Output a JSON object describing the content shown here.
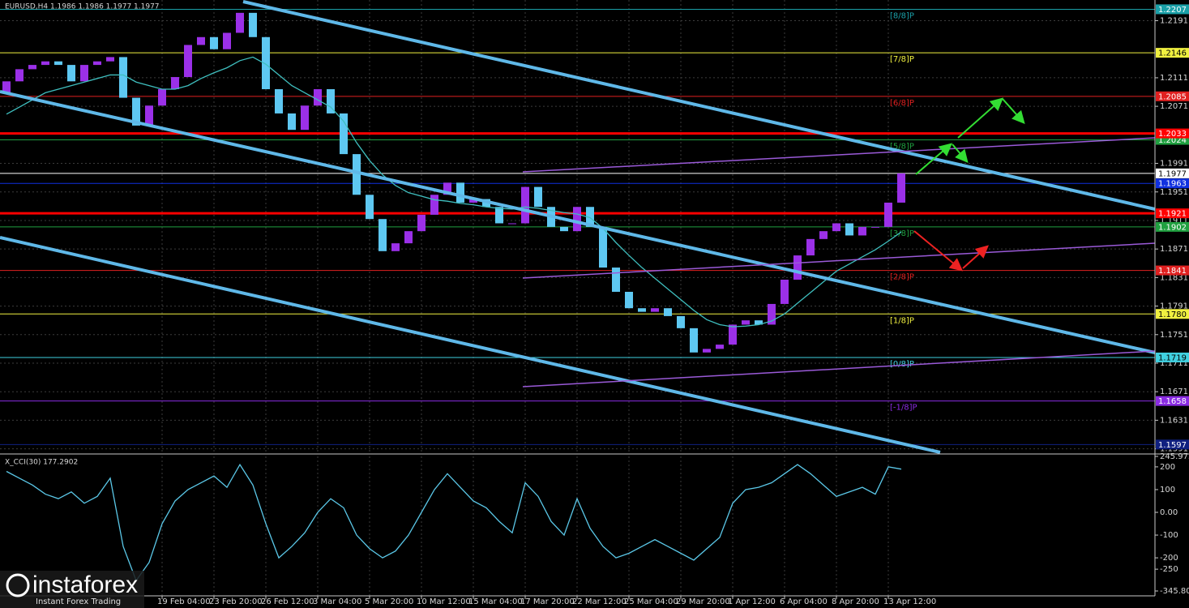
{
  "header": "EURUSD,H4  1.1986 1.1986 1.1977 1.1977",
  "chart_data": [
    {
      "type": "candlestick",
      "categories": [
        null,
        null,
        null,
        null,
        null,
        null,
        null,
        null,
        null,
        null,
        null,
        null,
        "19 Feb 04:00",
        null,
        null,
        null,
        "23 Feb 20:00",
        null,
        null,
        null,
        "26 Feb 12:00",
        null,
        null,
        null,
        "3 Mar 04:00",
        null,
        null,
        null,
        "5 Mar 20:00",
        null,
        null,
        null,
        "10 Mar 12:00",
        null,
        null,
        null,
        "15 Mar 04:00",
        null,
        null,
        null,
        "17 Mar 20:00",
        null,
        null,
        null,
        "22 Mar 12:00",
        null,
        null,
        null,
        "25 Mar 04:00",
        null,
        null,
        null,
        "29 Mar 20:00",
        null,
        null,
        null,
        "1 Apr 12:00",
        null,
        null,
        null,
        "6 Apr 04:00",
        null,
        null,
        null,
        "8 Apr 20:00",
        null,
        null,
        null,
        "13 Apr 12:00",
        null
      ],
      "open": [
        1.209,
        1.2106,
        1.2123,
        1.2129,
        1.2134,
        1.2129,
        1.2106,
        1.2129,
        1.2134,
        1.214,
        1.2083,
        1.2044,
        1.2072,
        1.2095,
        1.2112,
        1.2157,
        1.2168,
        1.2151,
        1.2174,
        1.2202,
        1.2168,
        1.2095,
        1.2061,
        1.2038,
        1.2072,
        1.2095,
        1.2061,
        1.2004,
        1.1947,
        1.1913,
        1.1868,
        1.1879,
        1.1896,
        1.1919,
        1.1947,
        1.1964,
        1.1936,
        1.1941,
        1.193,
        1.1907,
        1.1907,
        1.1958,
        1.193,
        1.1902,
        1.1896,
        1.193,
        1.1902,
        1.1845,
        1.1811,
        1.1788,
        1.1783,
        1.1788,
        1.1777,
        1.176,
        1.1726,
        1.1731,
        1.1737,
        1.1765,
        1.1771,
        1.1765,
        1.1794,
        1.1828,
        1.1862,
        1.1885,
        1.1896,
        1.1907,
        1.189,
        1.1902,
        1.1902,
        1.1936
      ],
      "close": [
        1.2106,
        1.2123,
        1.2129,
        1.2134,
        1.2129,
        1.2106,
        1.2129,
        1.2134,
        1.214,
        1.2083,
        1.2044,
        1.2072,
        1.2095,
        1.2112,
        1.2157,
        1.2168,
        1.2151,
        1.2174,
        1.2202,
        1.2168,
        1.2095,
        1.2061,
        1.2038,
        1.2072,
        1.2095,
        1.2061,
        1.2004,
        1.1947,
        1.1913,
        1.1868,
        1.1879,
        1.1896,
        1.1919,
        1.1947,
        1.1964,
        1.1936,
        1.1941,
        1.193,
        1.1907,
        1.1907,
        1.1958,
        1.193,
        1.1902,
        1.1896,
        1.193,
        1.1902,
        1.1845,
        1.1811,
        1.1788,
        1.1783,
        1.1788,
        1.1777,
        1.176,
        1.1726,
        1.1731,
        1.1737,
        1.1765,
        1.1771,
        1.1765,
        1.1794,
        1.1828,
        1.1862,
        1.1885,
        1.1896,
        1.1907,
        1.189,
        1.1902,
        1.1902,
        1.1936,
        1.1977
      ],
      "up_color": "#9b30e8",
      "down_color": "#5ec8f2",
      "ma": {
        "color": "#3fbfbf",
        "values": [
          1.206,
          1.207,
          1.208,
          1.209,
          1.2095,
          1.21,
          1.2105,
          1.211,
          1.2115,
          1.2115,
          1.2105,
          1.21,
          1.2095,
          1.2095,
          1.21,
          1.211,
          1.2118,
          1.2125,
          1.2135,
          1.214,
          1.213,
          1.2115,
          1.21,
          1.209,
          1.208,
          1.207,
          1.205,
          1.202,
          1.1995,
          1.1975,
          1.196,
          1.195,
          1.1945,
          1.194,
          1.1938,
          1.1935,
          1.1933,
          1.193,
          1.1928,
          1.1927,
          1.193,
          1.1928,
          1.1925,
          1.1922,
          1.192,
          1.1915,
          1.19,
          1.188,
          1.1862,
          1.1845,
          1.183,
          1.1815,
          1.18,
          1.1785,
          1.1772,
          1.1765,
          1.1762,
          1.1763,
          1.1765,
          1.177,
          1.178,
          1.1795,
          1.181,
          1.1825,
          1.184,
          1.185,
          1.186,
          1.187,
          1.1882,
          1.1895
        ]
      },
      "ylim": [
        1.1586,
        1.222
      ],
      "yticks": [
        1.2191,
        1.2111,
        1.2071,
        1.1991,
        1.1951,
        1.1911,
        1.1871,
        1.1831,
        1.1791,
        1.1751,
        1.1711,
        1.1671,
        1.1631,
        1.1591
      ],
      "grid": true,
      "levels": [
        {
          "name": "[8/8]P",
          "price": 1.2207,
          "color": "#1aa0a8"
        },
        {
          "name": "[7/8]P",
          "price": 1.2146,
          "color": "#f0f040"
        },
        {
          "name": "[6/8]P",
          "price": 1.2085,
          "color": "#e02020"
        },
        {
          "name": "[5/8]P",
          "price": 1.2024,
          "color": "#20a040"
        },
        {
          "price": 1.1963,
          "color": "#1030e0"
        },
        {
          "name": "[3/8]P",
          "price": 1.1902,
          "color": "#20a040"
        },
        {
          "name": "[2/8]P",
          "price": 1.1841,
          "color": "#e02020"
        },
        {
          "name": "[1/8]P",
          "price": {
            "value": 1.178,
            "label": "1.1780"
          },
          "color": "#f0f040"
        },
        {
          "name": "[0/8]P",
          "price": 1.1719,
          "color": "#40d0e0"
        },
        {
          "name": "[-1/8]P",
          "price": 1.1658,
          "color": "#8a2be2"
        },
        {
          "price": 1.1597,
          "color": "#102080"
        }
      ],
      "resistance": [
        {
          "price": 1.2033,
          "color": "#ff0000"
        },
        {
          "price": 1.1921,
          "color": "#ff0000"
        }
      ],
      "bid": {
        "price": 1.1977,
        "color": "#ffffff"
      }
    },
    {
      "type": "line",
      "title": "X_CCI(30) 177.2902",
      "color": "#5bc8e8",
      "values": [
        180,
        150,
        120,
        80,
        60,
        90,
        40,
        70,
        150,
        -150,
        -300,
        -220,
        -50,
        50,
        100,
        130,
        160,
        110,
        210,
        120,
        -50,
        -200,
        -150,
        -90,
        0,
        60,
        20,
        -100,
        -160,
        -200,
        -170,
        -100,
        0,
        100,
        170,
        110,
        50,
        20,
        -40,
        -90,
        130,
        70,
        -40,
        -100,
        60,
        -70,
        -150,
        -200,
        -180,
        -150,
        -120,
        -150,
        -180,
        -210,
        -160,
        -110,
        40,
        100,
        110,
        130,
        170,
        210,
        170,
        120,
        70,
        90,
        110,
        80,
        200,
        190
      ],
      "ylim": [
        -345.801,
        245.975
      ],
      "yticks": [
        245.975,
        200,
        100,
        {
          "value": 0,
          "label": "0.00"
        },
        -100,
        -200,
        -250,
        -345.801
      ]
    }
  ],
  "watermark": {
    "brand": "instaforex",
    "tagline": "Instant Forex Trading"
  }
}
